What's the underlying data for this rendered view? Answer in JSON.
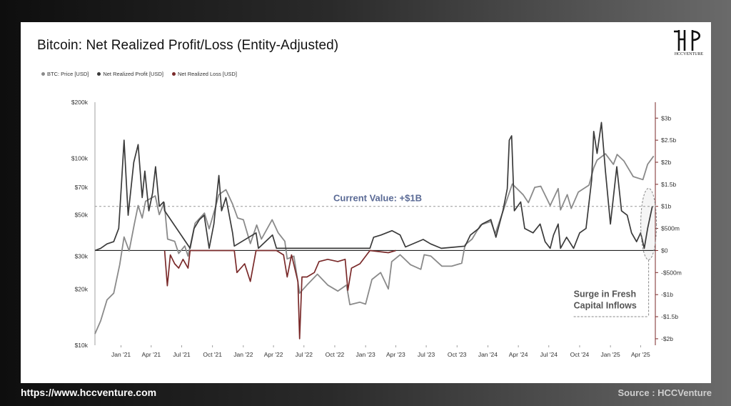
{
  "title": "Bitcoin: Net Realized Profit/Loss (Entity-Adjusted)",
  "legend": [
    {
      "label": "BTC: Price [USD]",
      "color": "#8a8a8a"
    },
    {
      "label": "Net Realized Profit [USD]",
      "color": "#3a3a3a"
    },
    {
      "label": "Net Realized Loss [USD]",
      "color": "#7a2a2a"
    }
  ],
  "logo_text": "HCCVENTURE",
  "footer": {
    "url": "https://www.hccventure.com",
    "source": "Source : HCCVenture"
  },
  "chart_data": {
    "type": "line",
    "title": "Bitcoin: Net Realized Profit/Loss (Entity-Adjusted)",
    "x_ticks": [
      "Jan '21",
      "Apr '21",
      "Jul '21",
      "Oct '21",
      "Jan '22",
      "Apr '22",
      "Jul '22",
      "Oct '22",
      "Jan '23",
      "Apr '23",
      "Jul '23",
      "Oct '23",
      "Jan '24",
      "Apr '24",
      "Jul '24",
      "Oct '24",
      "Jan '25",
      "Apr '25"
    ],
    "x_range": [
      "2020-10-15",
      "2025-05-15"
    ],
    "y_left": {
      "scale": "log",
      "ticks": [
        {
          "v": 10000,
          "label": "$10k"
        },
        {
          "v": 20000,
          "label": "$20k"
        },
        {
          "v": 30000,
          "label": "$30k"
        },
        {
          "v": 50000,
          "label": "$50k"
        },
        {
          "v": 70000,
          "label": "$70k"
        },
        {
          "v": 100000,
          "label": "$100k"
        },
        {
          "v": 200000,
          "label": "$200k"
        }
      ],
      "range": [
        10000,
        200000
      ]
    },
    "y_right": {
      "scale": "linear",
      "ticks": [
        {
          "v": 3,
          "label": "$3b"
        },
        {
          "v": 2.5,
          "label": "$2.5b"
        },
        {
          "v": 2,
          "label": "$2b"
        },
        {
          "v": 1.5,
          "label": "$1.5b"
        },
        {
          "v": 1,
          "label": "$1b"
        },
        {
          "v": 0.5,
          "label": "$500m"
        },
        {
          "v": 0,
          "label": "$0"
        },
        {
          "v": -0.5,
          "label": "-$500m"
        },
        {
          "v": -1,
          "label": "-$1b"
        },
        {
          "v": -1.5,
          "label": "-$1.5b"
        },
        {
          "v": -2,
          "label": "-$2b"
        }
      ],
      "range": [
        -2.05,
        3.15
      ]
    },
    "series": [
      {
        "name": "BTC: Price [USD]",
        "axis": "left",
        "color": "#8a8a8a",
        "points": [
          [
            "2020-10-15",
            11500
          ],
          [
            "2020-11-01",
            13500
          ],
          [
            "2020-11-20",
            17500
          ],
          [
            "2020-12-10",
            19000
          ],
          [
            "2020-12-28",
            27000
          ],
          [
            "2021-01-10",
            38000
          ],
          [
            "2021-01-25",
            32000
          ],
          [
            "2021-02-10",
            45000
          ],
          [
            "2021-02-21",
            56000
          ],
          [
            "2021-03-05",
            48000
          ],
          [
            "2021-03-15",
            59000
          ],
          [
            "2021-04-13",
            63000
          ],
          [
            "2021-04-25",
            50000
          ],
          [
            "2021-05-10",
            58000
          ],
          [
            "2021-05-20",
            37000
          ],
          [
            "2021-06-10",
            36000
          ],
          [
            "2021-06-22",
            31000
          ],
          [
            "2021-07-10",
            34000
          ],
          [
            "2021-07-20",
            30000
          ],
          [
            "2021-08-10",
            45000
          ],
          [
            "2021-09-07",
            51000
          ],
          [
            "2021-09-21",
            42000
          ],
          [
            "2021-10-10",
            55000
          ],
          [
            "2021-10-20",
            64000
          ],
          [
            "2021-11-10",
            68000
          ],
          [
            "2021-11-30",
            57000
          ],
          [
            "2021-12-15",
            48000
          ],
          [
            "2022-01-01",
            47000
          ],
          [
            "2022-01-22",
            35000
          ],
          [
            "2022-02-10",
            44000
          ],
          [
            "2022-02-24",
            37000
          ],
          [
            "2022-03-28",
            47000
          ],
          [
            "2022-04-15",
            40000
          ],
          [
            "2022-05-05",
            36000
          ],
          [
            "2022-05-12",
            29000
          ],
          [
            "2022-06-01",
            30000
          ],
          [
            "2022-06-18",
            19000
          ],
          [
            "2022-07-10",
            21000
          ],
          [
            "2022-08-10",
            24000
          ],
          [
            "2022-09-10",
            21000
          ],
          [
            "2022-10-10",
            19500
          ],
          [
            "2022-11-05",
            21000
          ],
          [
            "2022-11-15",
            16500
          ],
          [
            "2022-12-15",
            17000
          ],
          [
            "2023-01-01",
            16600
          ],
          [
            "2023-01-20",
            22500
          ],
          [
            "2023-02-15",
            24500
          ],
          [
            "2023-03-10",
            20000
          ],
          [
            "2023-03-20",
            28000
          ],
          [
            "2023-04-14",
            30500
          ],
          [
            "2023-05-15",
            27000
          ],
          [
            "2023-06-15",
            25500
          ],
          [
            "2023-06-25",
            30500
          ],
          [
            "2023-07-15",
            30000
          ],
          [
            "2023-08-17",
            26500
          ],
          [
            "2023-09-15",
            26500
          ],
          [
            "2023-10-15",
            27500
          ],
          [
            "2023-10-25",
            34500
          ],
          [
            "2023-11-15",
            37000
          ],
          [
            "2023-12-10",
            44000
          ],
          [
            "2024-01-10",
            46000
          ],
          [
            "2024-01-23",
            39500
          ],
          [
            "2024-02-15",
            52000
          ],
          [
            "2024-03-14",
            73000
          ],
          [
            "2024-04-15",
            64000
          ],
          [
            "2024-05-01",
            58000
          ],
          [
            "2024-05-20",
            70000
          ],
          [
            "2024-06-07",
            71000
          ],
          [
            "2024-07-05",
            56000
          ],
          [
            "2024-07-29",
            69000
          ],
          [
            "2024-08-05",
            53000
          ],
          [
            "2024-08-25",
            64000
          ],
          [
            "2024-09-06",
            54000
          ],
          [
            "2024-09-27",
            66000
          ],
          [
            "2024-10-29",
            72000
          ],
          [
            "2024-11-12",
            89000
          ],
          [
            "2024-11-22",
            98000
          ],
          [
            "2024-12-17",
            106000
          ],
          [
            "2025-01-10",
            93000
          ],
          [
            "2025-01-21",
            105000
          ],
          [
            "2025-02-10",
            97000
          ],
          [
            "2025-03-10",
            80000
          ],
          [
            "2025-04-08",
            77000
          ],
          [
            "2025-04-22",
            93000
          ],
          [
            "2025-05-10",
            103000
          ]
        ]
      },
      {
        "name": "Net Realized Profit [USD]",
        "axis": "right",
        "color": "#3a3a3a",
        "points": [
          [
            "2020-10-15",
            0.0
          ],
          [
            "2020-11-01",
            0.05
          ],
          [
            "2020-11-20",
            0.15
          ],
          [
            "2020-12-10",
            0.2
          ],
          [
            "2020-12-25",
            0.5
          ],
          [
            "2021-01-03",
            1.6
          ],
          [
            "2021-01-10",
            2.5
          ],
          [
            "2021-01-22",
            0.8
          ],
          [
            "2021-02-08",
            2.0
          ],
          [
            "2021-02-21",
            2.4
          ],
          [
            "2021-03-05",
            1.2
          ],
          [
            "2021-03-13",
            1.8
          ],
          [
            "2021-03-25",
            0.9
          ],
          [
            "2021-04-05",
            1.3
          ],
          [
            "2021-04-14",
            1.9
          ],
          [
            "2021-04-25",
            1.0
          ],
          [
            "2021-05-08",
            1.1
          ],
          [
            "2021-05-11",
            0.9
          ],
          [
            "2021-07-26",
            0.05
          ],
          [
            "2021-08-07",
            0.5
          ],
          [
            "2021-08-23",
            0.7
          ],
          [
            "2021-09-06",
            0.8
          ],
          [
            "2021-09-21",
            0.05
          ],
          [
            "2021-10-05",
            0.6
          ],
          [
            "2021-10-20",
            1.7
          ],
          [
            "2021-10-28",
            0.9
          ],
          [
            "2021-11-10",
            1.2
          ],
          [
            "2021-11-30",
            0.4
          ],
          [
            "2021-12-05",
            0.1
          ],
          [
            "2022-02-08",
            0.4
          ],
          [
            "2022-02-15",
            0.05
          ],
          [
            "2022-03-29",
            0.35
          ],
          [
            "2022-04-10",
            0.05
          ],
          [
            "2023-01-14",
            0.05
          ],
          [
            "2023-01-25",
            0.3
          ],
          [
            "2023-02-16",
            0.35
          ],
          [
            "2023-03-21",
            0.45
          ],
          [
            "2023-04-14",
            0.35
          ],
          [
            "2023-04-30",
            0.08
          ],
          [
            "2023-06-22",
            0.25
          ],
          [
            "2023-07-14",
            0.15
          ],
          [
            "2023-08-15",
            0.05
          ],
          [
            "2023-10-25",
            0.1
          ],
          [
            "2023-11-10",
            0.35
          ],
          [
            "2023-12-05",
            0.5
          ],
          [
            "2023-12-15",
            0.6
          ],
          [
            "2024-01-10",
            0.7
          ],
          [
            "2024-01-25",
            0.3
          ],
          [
            "2024-02-15",
            0.9
          ],
          [
            "2024-02-28",
            1.4
          ],
          [
            "2024-03-05",
            2.5
          ],
          [
            "2024-03-12",
            2.6
          ],
          [
            "2024-03-20",
            0.9
          ],
          [
            "2024-04-08",
            1.1
          ],
          [
            "2024-04-20",
            0.5
          ],
          [
            "2024-05-15",
            0.4
          ],
          [
            "2024-06-05",
            0.6
          ],
          [
            "2024-06-20",
            0.2
          ],
          [
            "2024-07-05",
            0.05
          ],
          [
            "2024-07-15",
            0.35
          ],
          [
            "2024-07-29",
            0.6
          ],
          [
            "2024-08-05",
            0.05
          ],
          [
            "2024-08-23",
            0.3
          ],
          [
            "2024-09-13",
            0.05
          ],
          [
            "2024-10-01",
            0.4
          ],
          [
            "2024-10-20",
            0.5
          ],
          [
            "2024-11-06",
            1.6
          ],
          [
            "2024-11-12",
            2.7
          ],
          [
            "2024-11-22",
            2.2
          ],
          [
            "2024-12-05",
            2.9
          ],
          [
            "2024-12-17",
            1.8
          ],
          [
            "2025-01-01",
            0.6
          ],
          [
            "2025-01-20",
            1.9
          ],
          [
            "2025-02-03",
            0.9
          ],
          [
            "2025-02-20",
            0.8
          ],
          [
            "2025-03-05",
            0.4
          ],
          [
            "2025-03-20",
            0.2
          ],
          [
            "2025-04-01",
            0.4
          ],
          [
            "2025-04-12",
            0.05
          ],
          [
            "2025-04-22",
            0.5
          ],
          [
            "2025-05-06",
            1.0
          ]
        ]
      },
      {
        "name": "Net Realized Loss [USD]",
        "axis": "right",
        "color": "#7a2a2a",
        "points": [
          [
            "2021-05-11",
            0.0
          ],
          [
            "2021-05-19",
            -0.8
          ],
          [
            "2021-05-28",
            -0.1
          ],
          [
            "2021-06-10",
            -0.3
          ],
          [
            "2021-06-22",
            -0.4
          ],
          [
            "2021-07-05",
            -0.2
          ],
          [
            "2021-07-20",
            -0.4
          ],
          [
            "2021-07-26",
            0.0
          ],
          [
            "2021-12-05",
            0.0
          ],
          [
            "2021-12-13",
            -0.5
          ],
          [
            "2022-01-05",
            -0.3
          ],
          [
            "2022-01-22",
            -0.7
          ],
          [
            "2022-02-08",
            0.0
          ],
          [
            "2022-04-10",
            0.0
          ],
          [
            "2022-05-01",
            -0.1
          ],
          [
            "2022-05-12",
            -0.6
          ],
          [
            "2022-05-25",
            -0.1
          ],
          [
            "2022-06-13",
            -0.7
          ],
          [
            "2022-06-18",
            -2.0
          ],
          [
            "2022-06-25",
            -0.6
          ],
          [
            "2022-07-10",
            -0.6
          ],
          [
            "2022-08-01",
            -0.5
          ],
          [
            "2022-08-15",
            -0.25
          ],
          [
            "2022-09-10",
            -0.2
          ],
          [
            "2022-10-10",
            -0.25
          ],
          [
            "2022-11-01",
            -0.2
          ],
          [
            "2022-11-09",
            -0.9
          ],
          [
            "2022-11-20",
            -0.4
          ],
          [
            "2022-12-15",
            -0.3
          ],
          [
            "2023-01-14",
            0.0
          ],
          [
            "2023-03-10",
            -0.05
          ],
          [
            "2023-04-01",
            0.0
          ]
        ]
      }
    ],
    "reference_lines": [
      {
        "label": "Current Value: +$1B",
        "axis": "right",
        "value": 1.0,
        "style": "dashed"
      },
      {
        "label": "",
        "axis": "right",
        "value": 0.0,
        "style": "solid"
      }
    ],
    "annotations": [
      {
        "text": [
          "Surge in Fresh",
          "Capital Inflows"
        ],
        "date": "2025-04-25",
        "value": 0.6,
        "style": "dashed-ellipse"
      }
    ],
    "grid": false
  }
}
